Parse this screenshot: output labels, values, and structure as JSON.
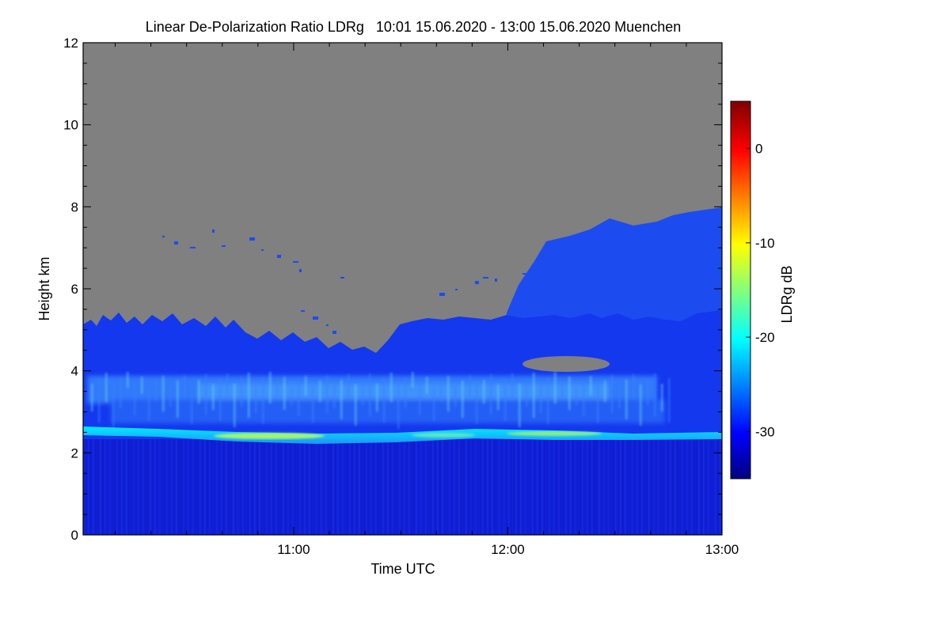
{
  "chart_data": {
    "type": "heatmap",
    "title": "Linear De-Polarization Ratio LDRg   10:01 15.06.2020 - 13:00 15.06.2020 Muenchen",
    "xlabel": "Time UTC",
    "ylabel": "Height km",
    "colorbar_label": "LDRg dB",
    "x_range_hours": [
      10.017,
      13.0
    ],
    "x_ticks": [
      {
        "value": 11.0,
        "label": "11:00"
      },
      {
        "value": 12.0,
        "label": "12:00"
      },
      {
        "value": 13.0,
        "label": "13:00"
      }
    ],
    "y_range": [
      0,
      12
    ],
    "y_ticks": [
      0,
      2,
      4,
      6,
      8,
      10,
      12
    ],
    "colorbar_range": [
      -35,
      5
    ],
    "colorbar_ticks": [
      0,
      -10,
      -20,
      -30
    ],
    "colormap": [
      "#00007f",
      "#0000ff",
      "#00ffff",
      "#ffff00",
      "#ff0000",
      "#7f0000"
    ],
    "missing_color": "#808080",
    "layers": [
      {
        "name": "near-surface layer",
        "base_km": 0.0,
        "top_km": 2.3,
        "ldr_db": -31
      },
      {
        "name": "melting-layer band",
        "base_km": 2.3,
        "top_km": 2.65,
        "ldr_db": -20,
        "peak_ldr_db": -14
      },
      {
        "name": "ice cloud / fall streaks",
        "base_km": 2.65,
        "top_km": 4.0,
        "ldr_db": -27
      },
      {
        "name": "upper cloud",
        "base_km": 4.0,
        "top_km": 5.2,
        "ldr_db": -31
      },
      {
        "name": "cirrus after 12:00",
        "base_km": 5.2,
        "top_km": 7.8,
        "ldr_db": -28
      }
    ]
  }
}
